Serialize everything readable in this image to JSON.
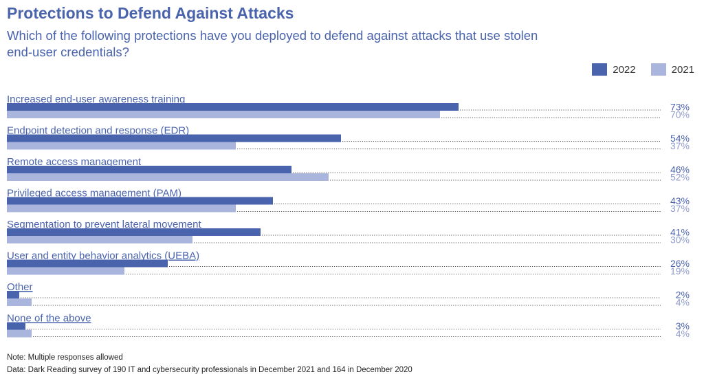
{
  "chart_data": {
    "type": "bar",
    "orientation": "horizontal",
    "title": "Protections to Defend Against Attacks",
    "subtitle": "Which of the following protections have you deployed to defend against attacks that use stolen end-user credentials?",
    "categories": [
      "Increased end-user awareness training",
      "Endpoint detection and response (EDR)",
      "Remote access management",
      "Privileged access management (PAM)",
      "Segmentation to prevent lateral movement",
      "User and entity behavior analytics (UEBA)",
      "Other",
      "None of the above"
    ],
    "series": [
      {
        "name": "2022",
        "values": [
          73,
          54,
          46,
          43,
          41,
          26,
          2,
          3
        ],
        "color": "#4a63ad"
      },
      {
        "name": "2021",
        "values": [
          70,
          37,
          52,
          37,
          30,
          19,
          4,
          4
        ],
        "color": "#a9b5dc"
      }
    ],
    "value_suffix": "%",
    "xlim": [
      0,
      100
    ],
    "legend_position": "top-right",
    "grid": false
  },
  "notes": {
    "note": "Note: Multiple responses allowed",
    "data": "Data: Dark Reading survey of 190 IT and cybersecurity professionals in December 2021 and 164 in December 2020"
  }
}
